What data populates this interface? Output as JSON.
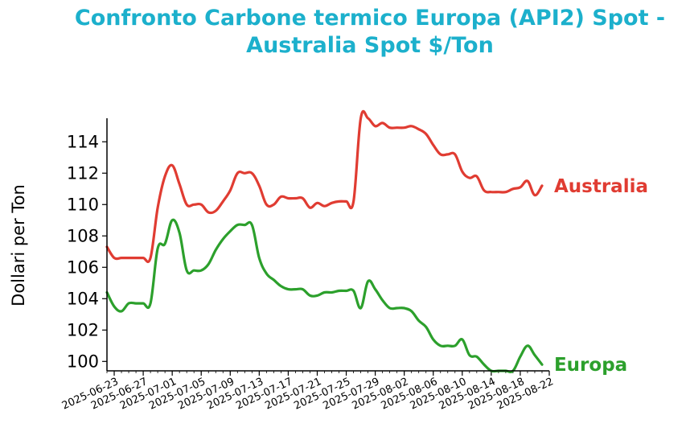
{
  "chart_data": {
    "type": "line",
    "title_line1": "Confronto Carbone termico Europa (API2) Spot -",
    "title_line2": "Australia Spot $/Ton",
    "ylabel": "Dollari per Ton",
    "xlabel": "",
    "ylim": [
      99.4,
      115.5
    ],
    "xlim": [
      "2025-06-22",
      "2025-08-22"
    ],
    "yticks": [
      100,
      102,
      104,
      106,
      108,
      110,
      112,
      114
    ],
    "xticks": [
      "2025-06-23",
      "2025-06-27",
      "2025-07-01",
      "2025-07-05",
      "2025-07-09",
      "2025-07-13",
      "2025-07-17",
      "2025-07-21",
      "2025-07-25",
      "2025-07-29",
      "2025-08-02",
      "2025-08-06",
      "2025-08-10",
      "2025-08-14",
      "2025-08-18",
      "2025-08-22"
    ],
    "grid": false,
    "legend": "none",
    "series": [
      {
        "name": "Australia",
        "color": "#e03c32",
        "points": [
          [
            "2025-06-22",
            107.3
          ],
          [
            "2025-06-23",
            106.6
          ],
          [
            "2025-06-24",
            106.6
          ],
          [
            "2025-06-25",
            106.6
          ],
          [
            "2025-06-26",
            106.6
          ],
          [
            "2025-06-27",
            106.6
          ],
          [
            "2025-06-28",
            106.6
          ],
          [
            "2025-06-29",
            109.8
          ],
          [
            "2025-06-30",
            111.8
          ],
          [
            "2025-07-01",
            112.5
          ],
          [
            "2025-07-02",
            111.3
          ],
          [
            "2025-07-03",
            110.0
          ],
          [
            "2025-07-04",
            110.0
          ],
          [
            "2025-07-05",
            110.0
          ],
          [
            "2025-07-06",
            109.5
          ],
          [
            "2025-07-07",
            109.6
          ],
          [
            "2025-07-08",
            110.2
          ],
          [
            "2025-07-09",
            110.9
          ],
          [
            "2025-07-10",
            112.0
          ],
          [
            "2025-07-11",
            112.0
          ],
          [
            "2025-07-12",
            112.0
          ],
          [
            "2025-07-13",
            111.2
          ],
          [
            "2025-07-14",
            110.0
          ],
          [
            "2025-07-15",
            110.0
          ],
          [
            "2025-07-16",
            110.5
          ],
          [
            "2025-07-17",
            110.4
          ],
          [
            "2025-07-18",
            110.4
          ],
          [
            "2025-07-19",
            110.4
          ],
          [
            "2025-07-20",
            109.8
          ],
          [
            "2025-07-21",
            110.1
          ],
          [
            "2025-07-22",
            109.9
          ],
          [
            "2025-07-23",
            110.1
          ],
          [
            "2025-07-24",
            110.2
          ],
          [
            "2025-07-25",
            110.2
          ],
          [
            "2025-07-26",
            110.2
          ],
          [
            "2025-07-27",
            115.5
          ],
          [
            "2025-07-28",
            115.5
          ],
          [
            "2025-07-29",
            115.0
          ],
          [
            "2025-07-30",
            115.2
          ],
          [
            "2025-07-31",
            114.9
          ],
          [
            "2025-08-01",
            114.9
          ],
          [
            "2025-08-02",
            114.9
          ],
          [
            "2025-08-03",
            115.0
          ],
          [
            "2025-08-04",
            114.8
          ],
          [
            "2025-08-05",
            114.5
          ],
          [
            "2025-08-06",
            113.8
          ],
          [
            "2025-08-07",
            113.2
          ],
          [
            "2025-08-08",
            113.2
          ],
          [
            "2025-08-09",
            113.2
          ],
          [
            "2025-08-10",
            112.1
          ],
          [
            "2025-08-11",
            111.7
          ],
          [
            "2025-08-12",
            111.8
          ],
          [
            "2025-08-13",
            110.9
          ],
          [
            "2025-08-14",
            110.8
          ],
          [
            "2025-08-15",
            110.8
          ],
          [
            "2025-08-16",
            110.8
          ],
          [
            "2025-08-17",
            111.0
          ],
          [
            "2025-08-18",
            111.1
          ],
          [
            "2025-08-19",
            111.5
          ],
          [
            "2025-08-20",
            110.6
          ],
          [
            "2025-08-21",
            111.2
          ]
        ]
      },
      {
        "name": "Europa",
        "color": "#2ca02c",
        "points": [
          [
            "2025-06-22",
            104.4
          ],
          [
            "2025-06-23",
            103.5
          ],
          [
            "2025-06-24",
            103.2
          ],
          [
            "2025-06-25",
            103.7
          ],
          [
            "2025-06-26",
            103.7
          ],
          [
            "2025-06-27",
            103.7
          ],
          [
            "2025-06-28",
            103.7
          ],
          [
            "2025-06-29",
            107.2
          ],
          [
            "2025-06-30",
            107.5
          ],
          [
            "2025-07-01",
            109.0
          ],
          [
            "2025-07-02",
            108.2
          ],
          [
            "2025-07-03",
            105.8
          ],
          [
            "2025-07-04",
            105.8
          ],
          [
            "2025-07-05",
            105.8
          ],
          [
            "2025-07-06",
            106.2
          ],
          [
            "2025-07-07",
            107.1
          ],
          [
            "2025-07-08",
            107.8
          ],
          [
            "2025-07-09",
            108.3
          ],
          [
            "2025-07-10",
            108.7
          ],
          [
            "2025-07-11",
            108.7
          ],
          [
            "2025-07-12",
            108.7
          ],
          [
            "2025-07-13",
            106.6
          ],
          [
            "2025-07-14",
            105.6
          ],
          [
            "2025-07-15",
            105.2
          ],
          [
            "2025-07-16",
            104.8
          ],
          [
            "2025-07-17",
            104.6
          ],
          [
            "2025-07-18",
            104.6
          ],
          [
            "2025-07-19",
            104.6
          ],
          [
            "2025-07-20",
            104.2
          ],
          [
            "2025-07-21",
            104.2
          ],
          [
            "2025-07-22",
            104.4
          ],
          [
            "2025-07-23",
            104.4
          ],
          [
            "2025-07-24",
            104.5
          ],
          [
            "2025-07-25",
            104.5
          ],
          [
            "2025-07-26",
            104.5
          ],
          [
            "2025-07-27",
            103.4
          ],
          [
            "2025-07-28",
            105.1
          ],
          [
            "2025-07-29",
            104.6
          ],
          [
            "2025-07-30",
            103.9
          ],
          [
            "2025-07-31",
            103.4
          ],
          [
            "2025-08-01",
            103.4
          ],
          [
            "2025-08-02",
            103.4
          ],
          [
            "2025-08-03",
            103.2
          ],
          [
            "2025-08-04",
            102.6
          ],
          [
            "2025-08-05",
            102.2
          ],
          [
            "2025-08-06",
            101.4
          ],
          [
            "2025-08-07",
            101.0
          ],
          [
            "2025-08-08",
            101.0
          ],
          [
            "2025-08-09",
            101.0
          ],
          [
            "2025-08-10",
            101.4
          ],
          [
            "2025-08-11",
            100.4
          ],
          [
            "2025-08-12",
            100.3
          ],
          [
            "2025-08-13",
            99.8
          ],
          [
            "2025-08-14",
            99.4
          ],
          [
            "2025-08-15",
            99.4
          ],
          [
            "2025-08-16",
            99.4
          ],
          [
            "2025-08-17",
            99.4
          ],
          [
            "2025-08-18",
            100.3
          ],
          [
            "2025-08-19",
            101.0
          ],
          [
            "2025-08-20",
            100.4
          ],
          [
            "2025-08-21",
            99.8
          ]
        ]
      }
    ]
  }
}
